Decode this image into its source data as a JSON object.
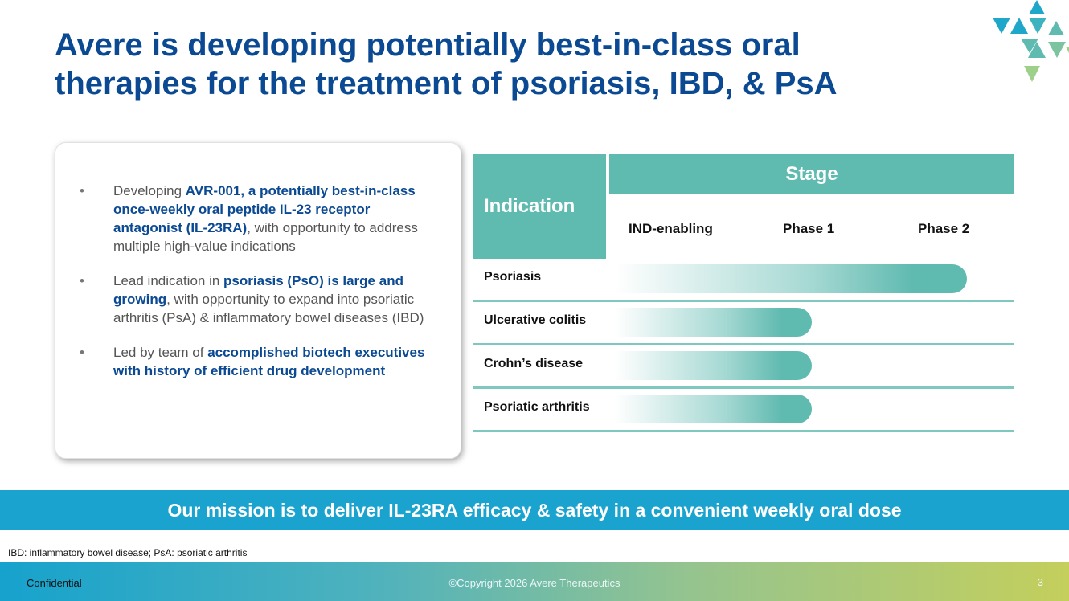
{
  "title": {
    "line1": "Avere is developing potentially best-in-class oral",
    "line2": "therapies for the treatment of psoriasis, IBD, & PsA"
  },
  "logo": {
    "icon": "triangle-mosaic-logo",
    "colors": [
      "#1fa7c9",
      "#5fbab0",
      "#9fd08a"
    ]
  },
  "bullets": [
    {
      "pre": "Developing ",
      "bold": "AVR-001, a potentially best-in-class once-weekly oral peptide IL-23 receptor antagonist (IL-23RA)",
      "post": ", with opportunity to address multiple high-value indications"
    },
    {
      "pre": "Lead indication in ",
      "bold": "psoriasis (PsO) is large and growing",
      "post": ", with opportunity to expand into psoriatic arthritis (PsA) & inflammatory bowel diseases (IBD)"
    },
    {
      "pre": "Led by team of ",
      "bold": "accomplished biotech executives with history of efficient drug development",
      "post": ""
    }
  ],
  "bullet_symbol": "•",
  "pipeline": {
    "indication_header": "Indication",
    "stage_header": "Stage",
    "phases": [
      "IND-enabling",
      "Phase 1",
      "Phase 2"
    ],
    "rows": [
      {
        "label": "Psoriasis",
        "progress_stages": 2.65
      },
      {
        "label": "Ulcerative colitis",
        "progress_stages": 1.5
      },
      {
        "label": "Crohn’s disease",
        "progress_stages": 1.5
      },
      {
        "label": "Psoriatic arthritis",
        "progress_stages": 1.5
      }
    ],
    "colors": {
      "header": "#5fbab0",
      "bar": "#5fbab0",
      "divider": "#7ec8c0"
    }
  },
  "mission": "Our mission is to deliver IL-23RA efficacy & safety in a convenient weekly oral dose",
  "footnote": "IBD: inflammatory bowel disease; PsA: psoriatic arthritis",
  "footer": {
    "confidential": "Confidential",
    "copyright": "©Copyright 2026 Avere Therapeutics",
    "page": "3"
  },
  "colors": {
    "title": "#0b4a93",
    "mission_bg": "#1aa3cf"
  }
}
